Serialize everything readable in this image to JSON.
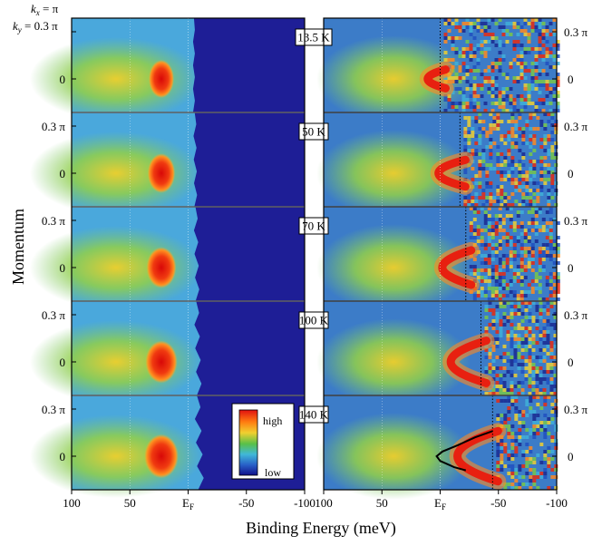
{
  "figure": {
    "corner_labels": {
      "kx": "k",
      "kx_sub": "x",
      "kx_rest": " = π",
      "ky": "k",
      "ky_sub": "y",
      "ky_rest": " = 0.3 π"
    },
    "colorbar": {
      "high_label": "high",
      "low_label": "low",
      "colors": [
        "#e01010",
        "#ff7a10",
        "#f0d030",
        "#58c048",
        "#40b8d8",
        "#2860c8",
        "#10108a"
      ]
    }
  },
  "chart_data": {
    "type": "heatmap",
    "xlabel": "Binding Energy (meV)",
    "ylabel": "Momentum",
    "x_tick_labels": [
      "100",
      "50",
      "E",
      "-50",
      "-100"
    ],
    "x_tick_values": [
      100,
      50,
      0,
      -50,
      -100
    ],
    "ef_subscript": "F",
    "xlim": [
      100,
      -100
    ],
    "y_tick_labels": [
      "0.3 π",
      "0"
    ],
    "y_tick_values": [
      0.3,
      0
    ],
    "ylim": [
      -0.15,
      0.35
    ],
    "temperatures": [
      "13.5 K",
      "50 K",
      "70 K",
      "100 K",
      "140 K"
    ],
    "right_panel_dotted_line_energies": [
      0,
      -17,
      -22,
      -35,
      -45
    ],
    "band_dispersion_140K": [
      {
        "momentum": 0.16,
        "energy": -45
      },
      {
        "momentum": 0.12,
        "energy": -30
      },
      {
        "momentum": 0.07,
        "energy": -15
      },
      {
        "momentum": 0.03,
        "energy": -2
      },
      {
        "momentum": 0.0,
        "energy": 3
      },
      {
        "momentum": -0.03,
        "energy": 0
      },
      {
        "momentum": -0.07,
        "energy": -12
      },
      {
        "momentum": -0.09,
        "energy": -22
      }
    ],
    "colors": {
      "background_left": "#4aa8dc",
      "gapped_region": "#1e1e96",
      "high_intensity": "#e82010",
      "mid_intensity": "#8ccd48",
      "low_intensity": "#2860c8"
    }
  }
}
